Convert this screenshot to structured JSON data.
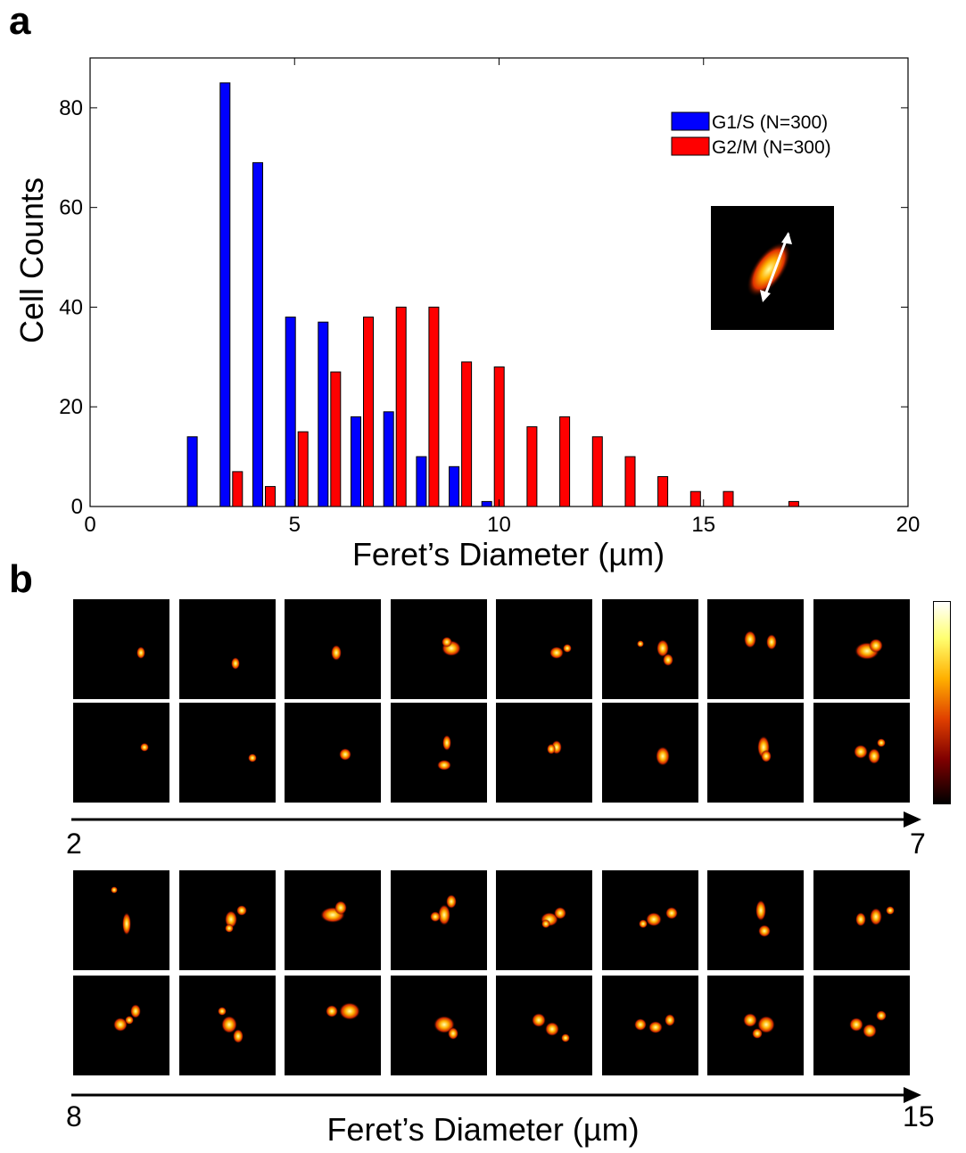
{
  "panel_a_label": "a",
  "panel_b_label": "b",
  "chart_data": {
    "type": "bar",
    "xlabel": "Feret’s Diameter (µm)",
    "ylabel": "Cell Counts",
    "xlim": [
      0,
      20
    ],
    "ylim": [
      0,
      90
    ],
    "xticks": [
      0,
      5,
      10,
      15,
      20
    ],
    "yticks": [
      0,
      20,
      40,
      60,
      80
    ],
    "x": [
      2.5,
      3.3,
      4.1,
      4.9,
      5.7,
      6.5,
      7.3,
      8.1,
      8.9,
      9.7,
      10.5,
      11.3,
      12.1,
      12.9,
      13.7,
      14.5,
      15.3,
      16.1,
      16.9
    ],
    "legend_position": "top-right",
    "grid": false,
    "series": [
      {
        "name": "G1/S (N=300)",
        "color": "#0000ff",
        "values": [
          14,
          85,
          69,
          38,
          37,
          18,
          19,
          10,
          8,
          1,
          0,
          0,
          0,
          0,
          0,
          0,
          0,
          0,
          0
        ]
      },
      {
        "name": "G2/M (N=300)",
        "color": "#ff0000",
        "values": [
          0,
          7,
          4,
          15,
          27,
          38,
          40,
          40,
          29,
          28,
          16,
          18,
          14,
          10,
          6,
          3,
          3,
          0,
          1
        ]
      }
    ]
  },
  "panel_b": {
    "row1_start": "2",
    "row1_end": "7",
    "row2_start": "8",
    "row2_end": "15",
    "xlabel": "Feret’s Diameter (µm)"
  }
}
